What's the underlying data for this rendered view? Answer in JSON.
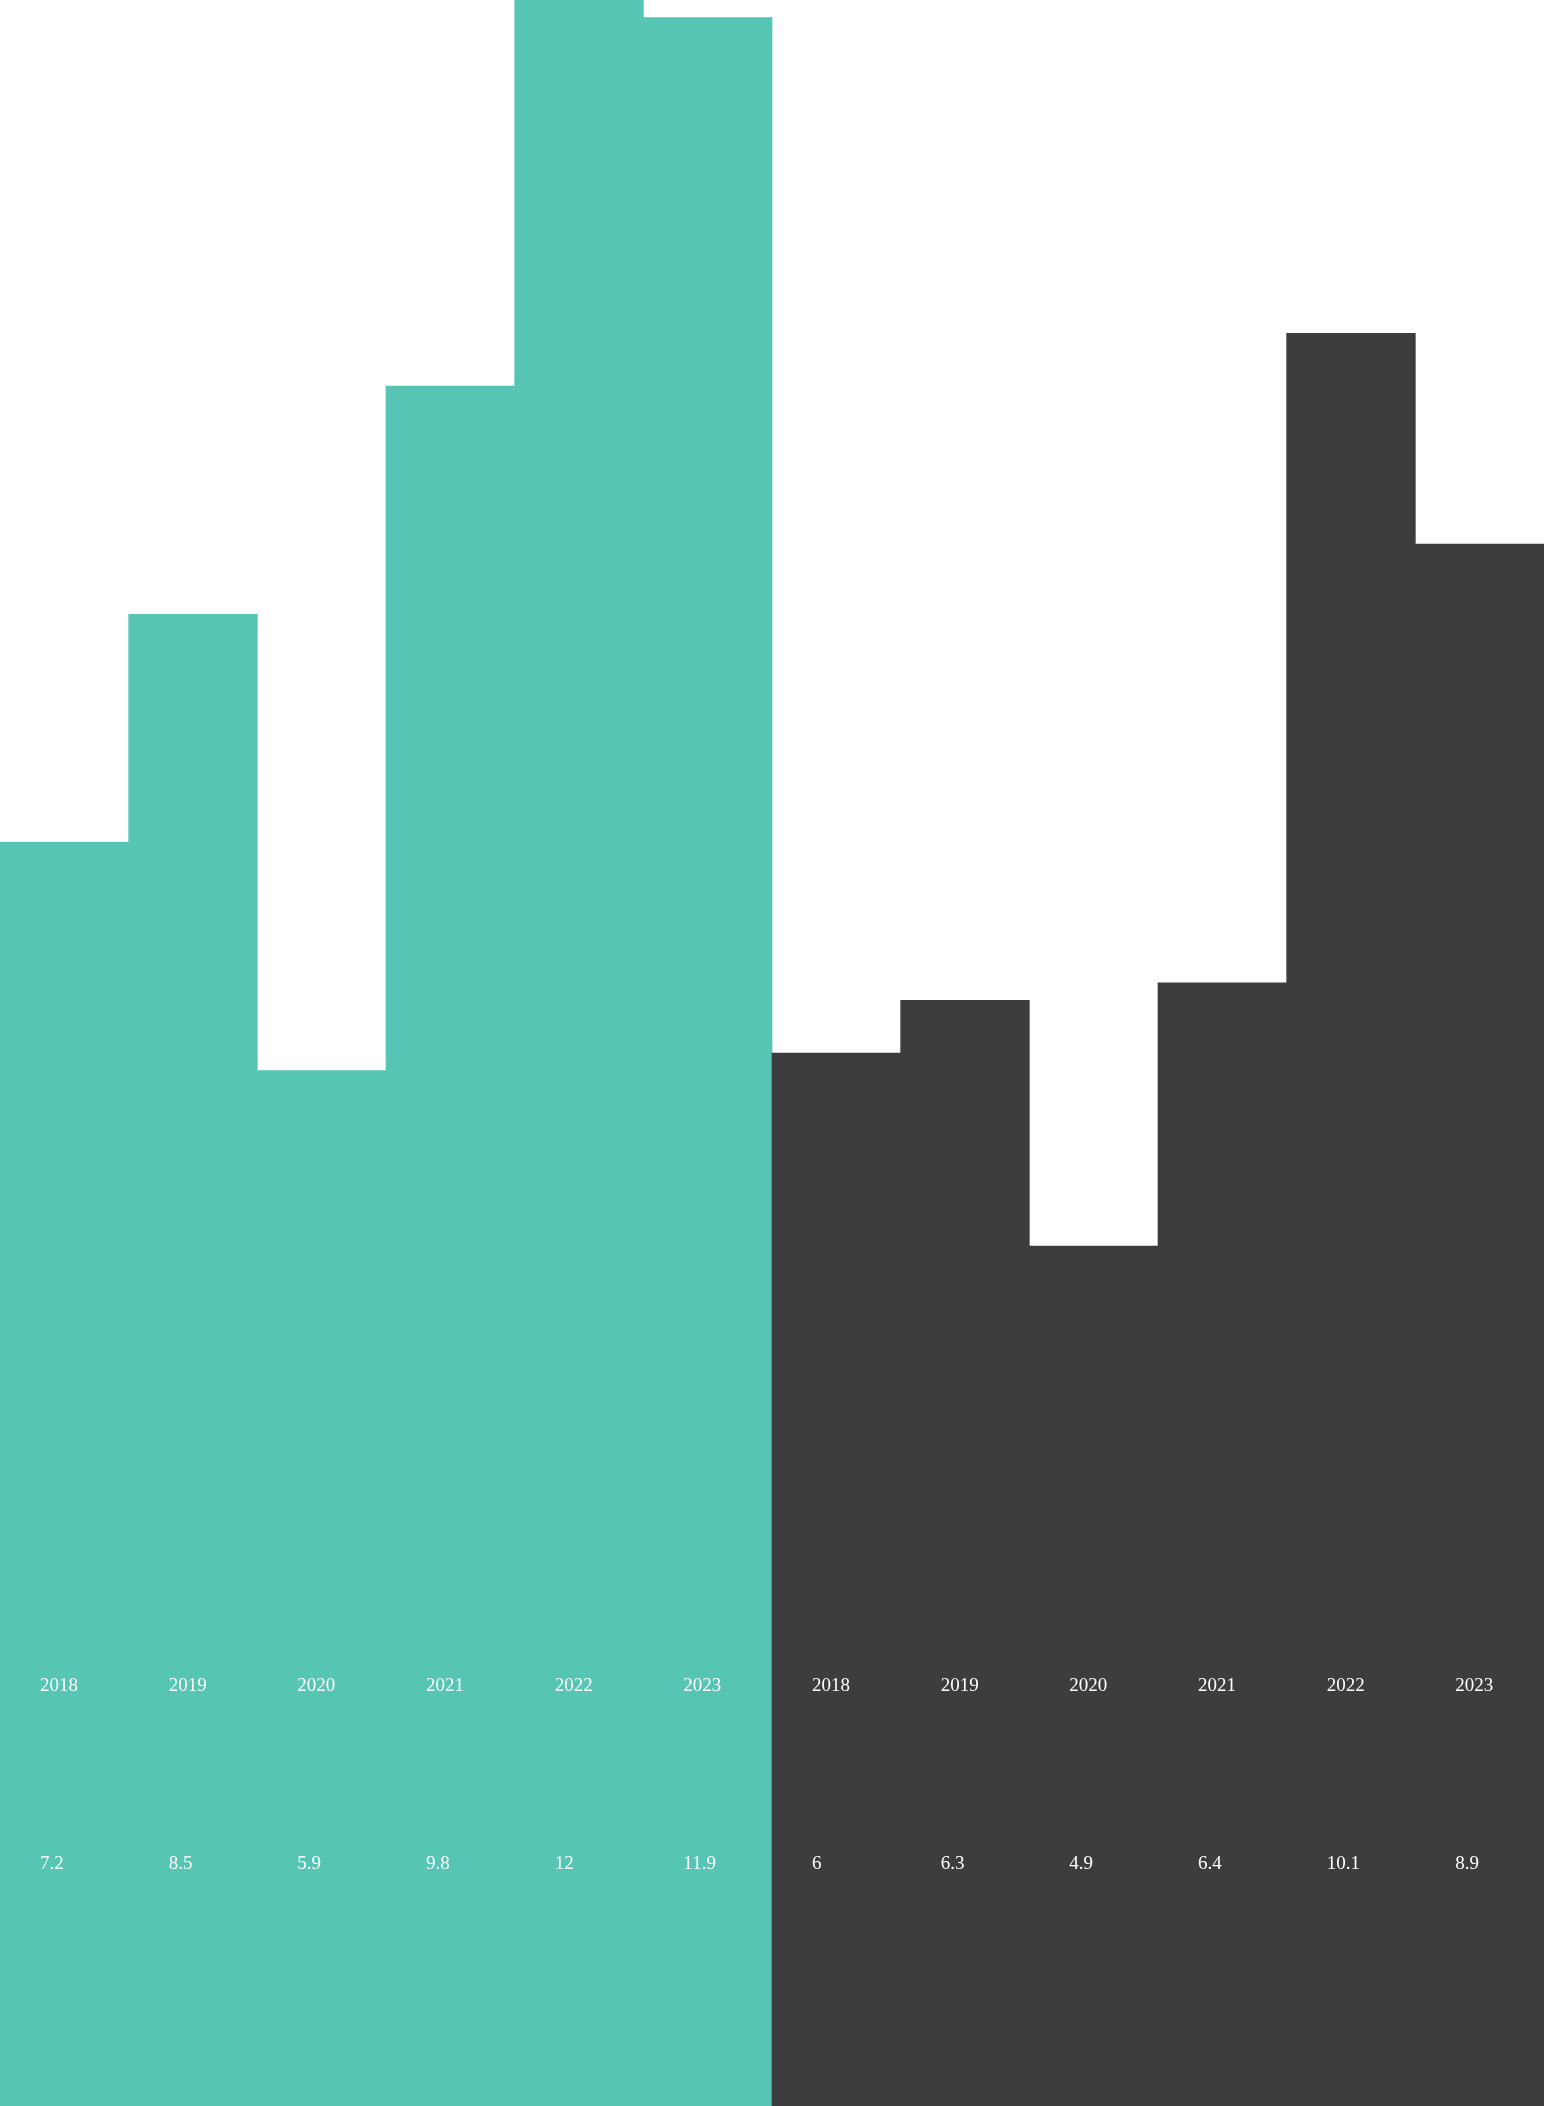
{
  "chart_data": {
    "type": "bar",
    "categories": [
      "2018",
      "2019",
      "2020",
      "2021",
      "2022",
      "2023",
      "2018",
      "2019",
      "2020",
      "2021",
      "2022",
      "2023"
    ],
    "values": [
      7.2,
      8.5,
      5.9,
      9.8,
      12,
      11.9,
      6,
      6.3,
      4.9,
      6.4,
      10.1,
      8.9
    ],
    "colors": [
      "#56c5b4",
      "#56c5b4",
      "#56c5b4",
      "#56c5b4",
      "#56c5b4",
      "#56c5b4",
      "#3d3d3d",
      "#3d3d3d",
      "#3d3d3d",
      "#3d3d3d",
      "#3d3d3d",
      "#3d3d3d"
    ],
    "data_labels": true,
    "legend": false
  }
}
